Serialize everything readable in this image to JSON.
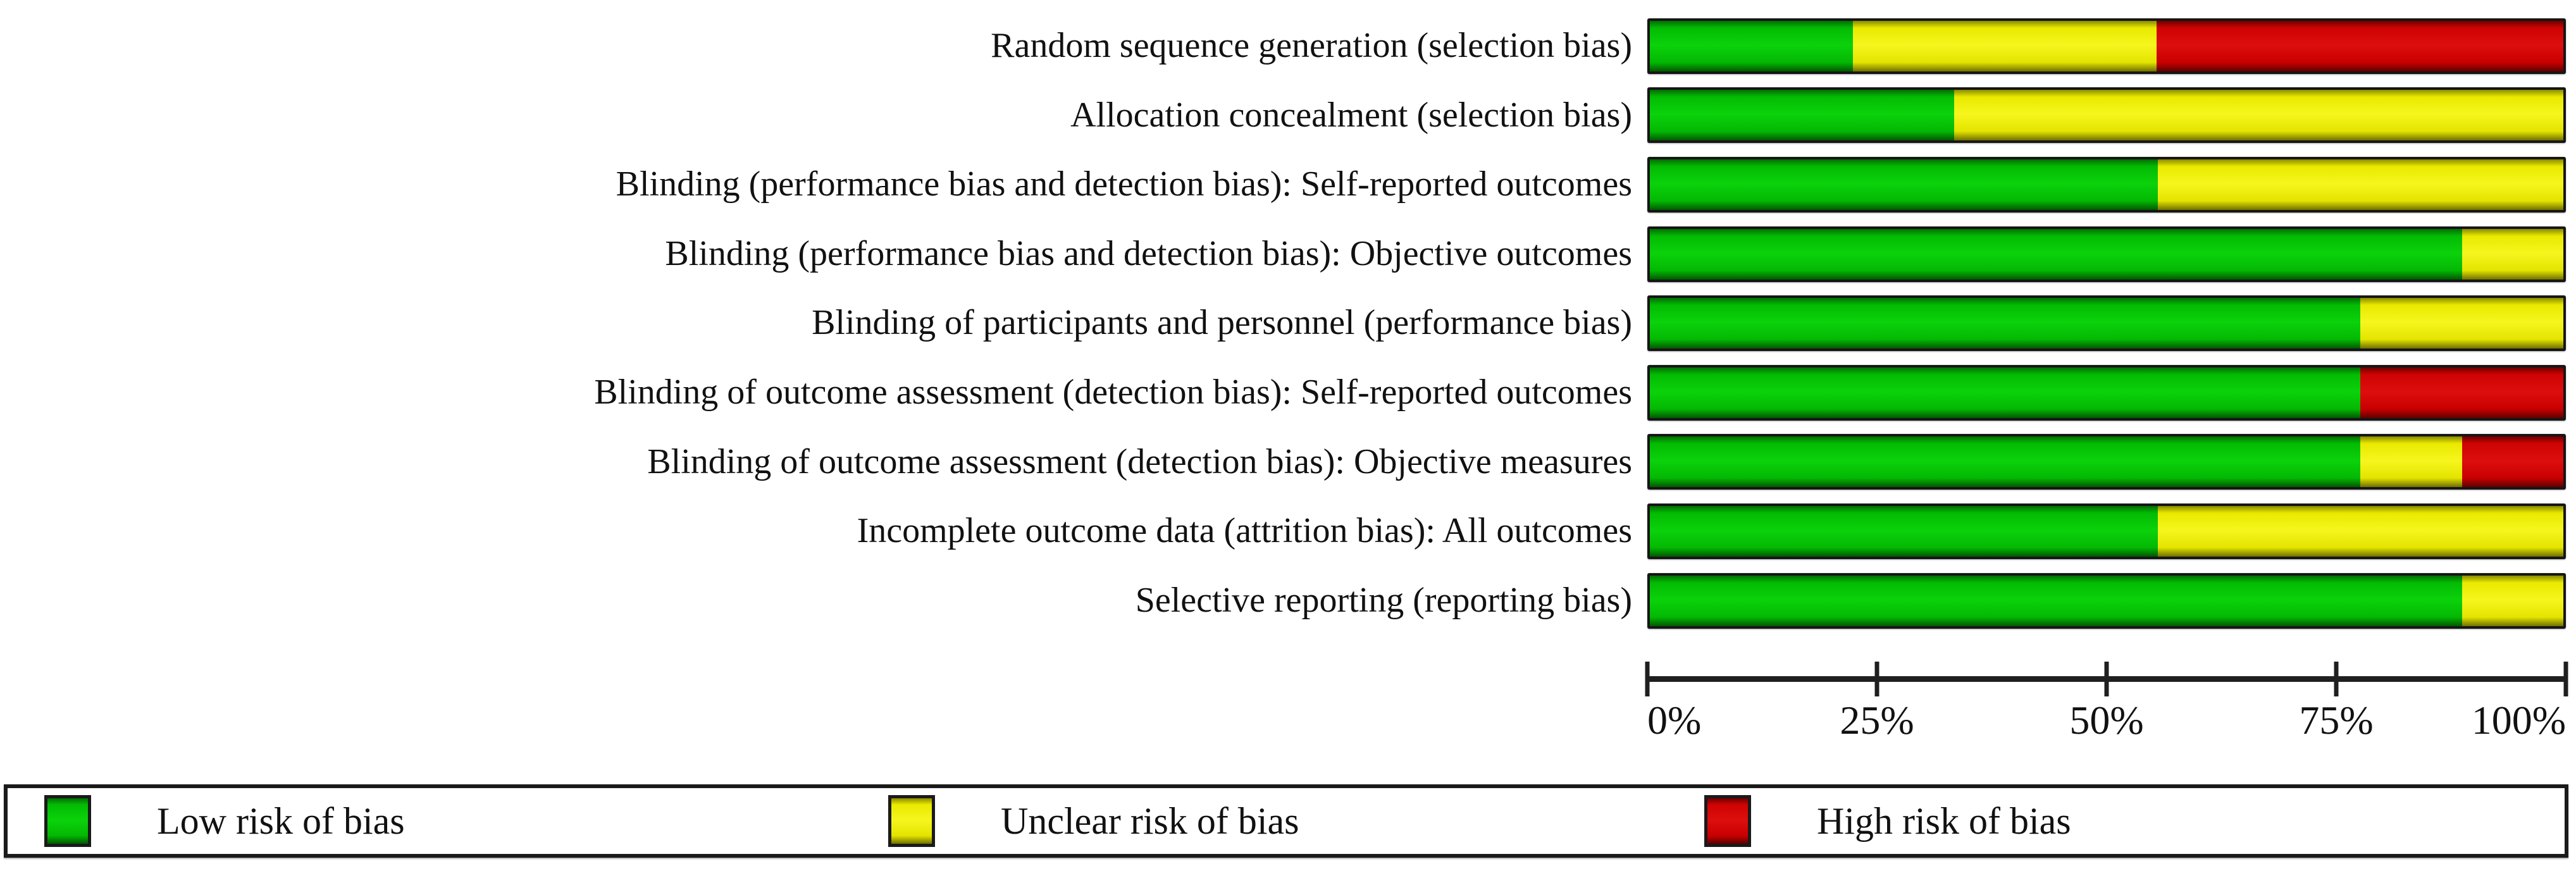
{
  "figure": {
    "background": "#ffffff",
    "text_color": "#111111"
  },
  "chart_data": {
    "type": "bar",
    "variant": "horizontal-stacked-100-percent",
    "title": "",
    "xlabel": "",
    "ylabel": "",
    "xlim": [
      0,
      100
    ],
    "x_tick_labels": [
      "0%",
      "25%",
      "50%",
      "75%",
      "100%"
    ],
    "grid": false,
    "legend_position": "bottom",
    "categories": [
      "Random sequence generation (selection bias)",
      "Allocation concealment (selection bias)",
      "Blinding (performance bias and detection bias): Self-reported outcomes",
      "Blinding (performance bias and detection bias): Objective outcomes",
      "Blinding of participants and personnel (performance bias)",
      "Blinding of outcome assessment (detection bias): Self-reported outcomes",
      "Blinding of outcome assessment (detection bias): Objective measures",
      "Incomplete outcome data (attrition bias): All outcomes",
      "Selective reporting (reporting bias)"
    ],
    "series": [
      {
        "name": "Low risk of bias",
        "key": "low",
        "color": "#03b803",
        "values": [
          22.2,
          33.3,
          55.6,
          88.9,
          77.8,
          77.8,
          77.8,
          55.6,
          88.9
        ]
      },
      {
        "name": "Unclear risk of bias",
        "key": "unclear",
        "color": "#e7e700",
        "values": [
          33.3,
          66.7,
          44.4,
          11.1,
          22.2,
          0,
          11.1,
          44.4,
          11.1
        ]
      },
      {
        "name": "High risk of bias",
        "key": "high",
        "color": "#cc0000",
        "values": [
          44.5,
          0,
          0,
          0,
          0,
          22.2,
          11.1,
          0,
          0
        ]
      }
    ]
  },
  "legend": {
    "items": [
      {
        "label": "Low risk of bias",
        "key": "low",
        "color": "#03b803"
      },
      {
        "label": "Unclear risk of bias",
        "key": "unclear",
        "color": "#e7e700"
      },
      {
        "label": "High risk of bias",
        "key": "high",
        "color": "#cc0000"
      }
    ]
  }
}
